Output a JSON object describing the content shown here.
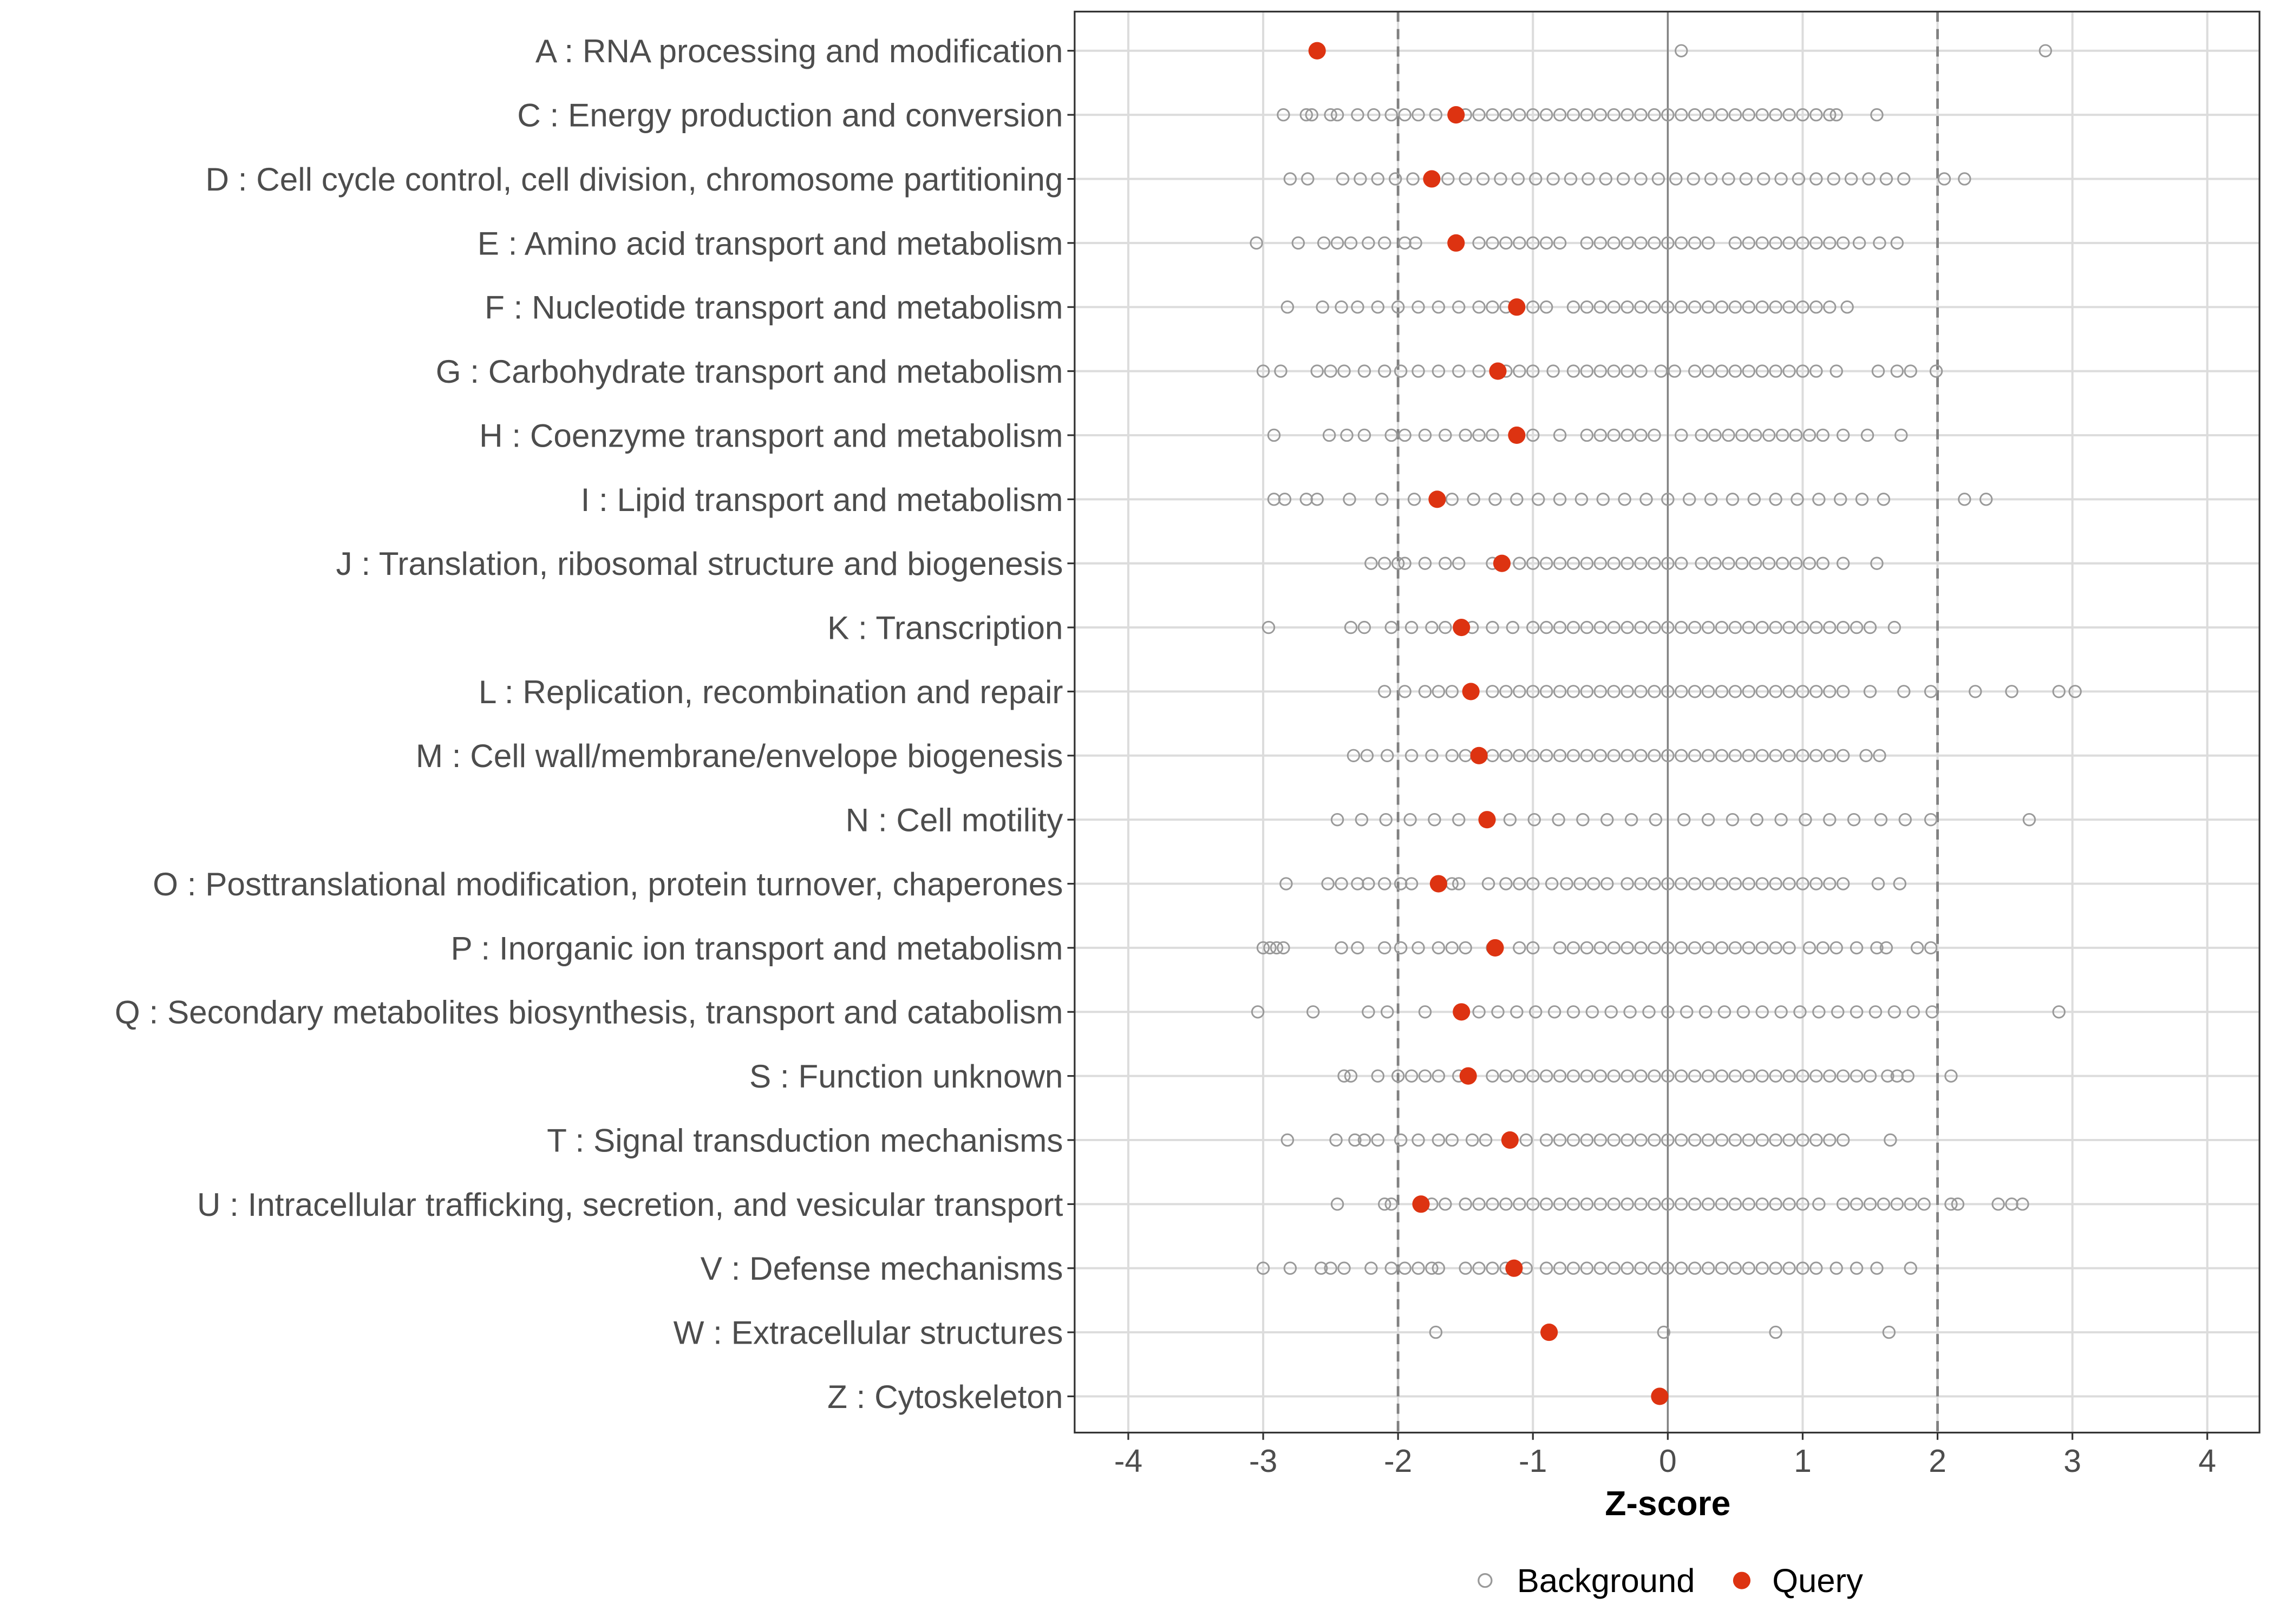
{
  "chart_data": {
    "type": "scatter",
    "title": "",
    "xlabel": "Z-score",
    "ylabel": "",
    "xlim": [
      -4.4,
      4.4
    ],
    "xticks": [
      -4,
      -3,
      -2,
      -1,
      0,
      1,
      2,
      3,
      4
    ],
    "xtick_labels": [
      "-4",
      "-3",
      "-2",
      "-1",
      "0",
      "1",
      "2",
      "3",
      "4"
    ],
    "reference_lines": {
      "solid": [
        0
      ],
      "dashed": [
        -2,
        2
      ]
    },
    "grid": true,
    "legend": {
      "placement": "bottom",
      "entries": [
        "Background",
        "Query"
      ]
    },
    "colors": {
      "background": "#999999",
      "query": "#dd3311"
    },
    "categories": [
      "A : RNA processing and modification",
      "C : Energy production and conversion",
      "D : Cell cycle control, cell division, chromosome partitioning",
      "E : Amino acid transport and metabolism",
      "F : Nucleotide transport and metabolism",
      "G : Carbohydrate transport and metabolism",
      "H : Coenzyme transport and metabolism",
      "I : Lipid transport and metabolism",
      "J : Translation, ribosomal structure and biogenesis",
      "K : Transcription",
      "L : Replication, recombination and repair",
      "M : Cell wall/membrane/envelope biogenesis",
      "N : Cell motility",
      "O : Posttranslational modification, protein turnover, chaperones",
      "P : Inorganic ion transport and metabolism",
      "Q : Secondary metabolites biosynthesis, transport and catabolism",
      "S : Function unknown",
      "T : Signal transduction mechanisms",
      "U : Intracellular trafficking, secretion, and vesicular transport",
      "V : Defense mechanisms",
      "W : Extracellular structures",
      "Z : Cytoskeleton"
    ],
    "series": [
      {
        "name": "Query",
        "values": [
          -2.6,
          -1.57,
          -1.75,
          -1.57,
          -1.12,
          -1.26,
          -1.12,
          -1.71,
          -1.23,
          -1.53,
          -1.46,
          -1.4,
          -1.34,
          -1.7,
          -1.28,
          -1.53,
          -1.48,
          -1.17,
          -1.83,
          -1.14,
          -0.88,
          -0.06
        ]
      },
      {
        "name": "Background",
        "values": [
          [
            0.1,
            2.8
          ],
          [
            -2.85,
            -2.68,
            -2.64,
            -2.5,
            -2.45,
            -2.3,
            -2.18,
            -2.05,
            -1.95,
            -1.85,
            -1.72,
            -1.5,
            -1.4,
            -1.3,
            -1.2,
            -1.1,
            -1.0,
            -0.9,
            -0.8,
            -0.7,
            -0.6,
            -0.5,
            -0.4,
            -0.3,
            -0.2,
            -0.1,
            0.0,
            0.1,
            0.2,
            0.3,
            0.4,
            0.5,
            0.6,
            0.7,
            0.8,
            0.9,
            1.0,
            1.1,
            1.2,
            1.25,
            1.55
          ],
          [
            -2.8,
            -2.67,
            -2.41,
            -2.28,
            -2.15,
            -2.02,
            -1.89,
            -1.63,
            -1.5,
            -1.37,
            -1.24,
            -1.11,
            -0.98,
            -0.85,
            -0.72,
            -0.59,
            -0.46,
            -0.33,
            -0.2,
            -0.07,
            0.06,
            0.19,
            0.32,
            0.45,
            0.58,
            0.71,
            0.84,
            0.97,
            1.1,
            1.23,
            1.36,
            1.49,
            1.62,
            1.75,
            2.05,
            2.2
          ],
          [
            -3.05,
            -2.74,
            -2.55,
            -2.45,
            -2.35,
            -2.22,
            -2.1,
            -1.95,
            -1.87,
            -1.4,
            -1.3,
            -1.2,
            -1.1,
            -1.0,
            -0.9,
            -0.8,
            -0.6,
            -0.5,
            -0.4,
            -0.3,
            -0.2,
            -0.1,
            0.0,
            0.1,
            0.2,
            0.3,
            0.5,
            0.6,
            0.7,
            0.8,
            0.9,
            1.0,
            1.1,
            1.2,
            1.3,
            1.42,
            1.57,
            1.7
          ],
          [
            -2.82,
            -2.56,
            -2.42,
            -2.3,
            -2.15,
            -2.0,
            -1.85,
            -1.7,
            -1.55,
            -1.4,
            -1.3,
            -1.2,
            -1.0,
            -0.9,
            -0.7,
            -0.6,
            -0.5,
            -0.4,
            -0.3,
            -0.2,
            -0.1,
            0.0,
            0.1,
            0.2,
            0.3,
            0.4,
            0.5,
            0.6,
            0.7,
            0.8,
            0.9,
            1.0,
            1.1,
            1.2,
            1.33
          ],
          [
            -3.0,
            -2.87,
            -2.6,
            -2.5,
            -2.4,
            -2.25,
            -2.1,
            -1.98,
            -1.85,
            -1.7,
            -1.55,
            -1.4,
            -1.2,
            -1.1,
            -1.0,
            -0.85,
            -0.7,
            -0.6,
            -0.5,
            -0.4,
            -0.3,
            -0.2,
            -0.05,
            0.05,
            0.2,
            0.3,
            0.4,
            0.5,
            0.6,
            0.7,
            0.8,
            0.9,
            1.0,
            1.1,
            1.25,
            1.56,
            1.7,
            1.8,
            1.99
          ],
          [
            -2.92,
            -2.51,
            -2.38,
            -2.25,
            -2.05,
            -1.95,
            -1.8,
            -1.65,
            -1.5,
            -1.4,
            -1.3,
            -1.0,
            -0.8,
            -0.6,
            -0.5,
            -0.4,
            -0.3,
            -0.2,
            -0.1,
            0.1,
            0.25,
            0.35,
            0.45,
            0.55,
            0.65,
            0.75,
            0.85,
            0.95,
            1.05,
            1.15,
            1.3,
            1.48,
            1.73
          ],
          [
            -2.92,
            -2.84,
            -2.68,
            -2.6,
            -2.36,
            -2.12,
            -1.88,
            -1.6,
            -1.44,
            -1.28,
            -1.12,
            -0.96,
            -0.8,
            -0.64,
            -0.48,
            -0.32,
            -0.16,
            0.0,
            0.16,
            0.32,
            0.48,
            0.64,
            0.8,
            0.96,
            1.12,
            1.28,
            1.44,
            1.6,
            2.2,
            2.36
          ],
          [
            -2.2,
            -2.1,
            -2.0,
            -1.95,
            -1.8,
            -1.65,
            -1.55,
            -1.3,
            -1.1,
            -1.0,
            -0.9,
            -0.8,
            -0.7,
            -0.6,
            -0.5,
            -0.4,
            -0.3,
            -0.2,
            -0.1,
            0.0,
            0.1,
            0.25,
            0.35,
            0.45,
            0.55,
            0.65,
            0.75,
            0.85,
            0.95,
            1.05,
            1.15,
            1.3,
            1.55
          ],
          [
            -2.96,
            -2.35,
            -2.25,
            -2.05,
            -1.9,
            -1.75,
            -1.65,
            -1.45,
            -1.3,
            -1.15,
            -1.0,
            -0.9,
            -0.8,
            -0.7,
            -0.6,
            -0.5,
            -0.4,
            -0.3,
            -0.2,
            -0.1,
            0.0,
            0.1,
            0.2,
            0.3,
            0.4,
            0.5,
            0.6,
            0.7,
            0.8,
            0.9,
            1.0,
            1.1,
            1.2,
            1.3,
            1.4,
            1.5,
            1.68
          ],
          [
            -2.1,
            -1.95,
            -1.8,
            -1.7,
            -1.6,
            -1.3,
            -1.2,
            -1.1,
            -1.0,
            -0.9,
            -0.8,
            -0.7,
            -0.6,
            -0.5,
            -0.4,
            -0.3,
            -0.2,
            -0.1,
            0.0,
            0.1,
            0.2,
            0.3,
            0.4,
            0.5,
            0.6,
            0.7,
            0.8,
            0.9,
            1.0,
            1.1,
            1.2,
            1.3,
            1.5,
            1.75,
            1.95,
            2.28,
            2.55,
            2.9,
            3.02
          ],
          [
            -2.33,
            -2.23,
            -2.08,
            -1.9,
            -1.75,
            -1.6,
            -1.5,
            -1.3,
            -1.2,
            -1.1,
            -1.0,
            -0.9,
            -0.8,
            -0.7,
            -0.6,
            -0.5,
            -0.4,
            -0.3,
            -0.2,
            -0.1,
            0.0,
            0.1,
            0.2,
            0.3,
            0.4,
            0.5,
            0.6,
            0.7,
            0.8,
            0.9,
            1.0,
            1.1,
            1.2,
            1.3,
            1.47,
            1.57
          ],
          [
            -2.45,
            -2.27,
            -2.09,
            -1.91,
            -1.73,
            -1.55,
            -1.17,
            -0.99,
            -0.81,
            -0.63,
            -0.45,
            -0.27,
            -0.09,
            0.12,
            0.3,
            0.48,
            0.66,
            0.84,
            1.02,
            1.2,
            1.38,
            1.58,
            1.76,
            1.95,
            2.68
          ],
          [
            -2.83,
            -2.52,
            -2.42,
            -2.3,
            -2.22,
            -2.1,
            -1.98,
            -1.9,
            -1.6,
            -1.55,
            -1.33,
            -1.2,
            -1.1,
            -1.0,
            -0.86,
            -0.75,
            -0.65,
            -0.55,
            -0.45,
            -0.3,
            -0.2,
            -0.1,
            0.0,
            0.1,
            0.2,
            0.3,
            0.4,
            0.5,
            0.6,
            0.7,
            0.8,
            0.9,
            1.0,
            1.1,
            1.2,
            1.3,
            1.56,
            1.72
          ],
          [
            -3.0,
            -2.95,
            -2.9,
            -2.85,
            -2.42,
            -2.3,
            -2.1,
            -1.98,
            -1.85,
            -1.7,
            -1.6,
            -1.5,
            -1.3,
            -1.1,
            -1.0,
            -0.8,
            -0.7,
            -0.6,
            -0.5,
            -0.4,
            -0.3,
            -0.2,
            -0.1,
            0.0,
            0.1,
            0.2,
            0.3,
            0.4,
            0.5,
            0.6,
            0.7,
            0.8,
            0.9,
            1.05,
            1.15,
            1.25,
            1.4,
            1.55,
            1.62,
            1.85,
            1.95
          ],
          [
            -3.04,
            -2.63,
            -2.22,
            -2.08,
            -1.8,
            -1.4,
            -1.26,
            -1.12,
            -0.98,
            -0.84,
            -0.7,
            -0.56,
            -0.42,
            -0.28,
            -0.14,
            0.0,
            0.14,
            0.28,
            0.42,
            0.56,
            0.7,
            0.84,
            0.98,
            1.12,
            1.26,
            1.4,
            1.54,
            1.68,
            1.82,
            1.96,
            2.9
          ],
          [
            -2.4,
            -2.35,
            -2.15,
            -2.0,
            -1.9,
            -1.8,
            -1.7,
            -1.55,
            -1.3,
            -1.2,
            -1.1,
            -1.0,
            -0.9,
            -0.8,
            -0.7,
            -0.6,
            -0.5,
            -0.4,
            -0.3,
            -0.2,
            -0.1,
            0.0,
            0.1,
            0.2,
            0.3,
            0.4,
            0.5,
            0.6,
            0.7,
            0.8,
            0.9,
            1.0,
            1.1,
            1.2,
            1.3,
            1.4,
            1.5,
            1.63,
            1.7,
            1.78,
            2.1
          ],
          [
            -2.82,
            -2.46,
            -2.32,
            -2.25,
            -2.15,
            -1.98,
            -1.85,
            -1.7,
            -1.6,
            -1.45,
            -1.35,
            -1.05,
            -0.9,
            -0.8,
            -0.7,
            -0.6,
            -0.5,
            -0.4,
            -0.3,
            -0.2,
            -0.1,
            0.0,
            0.1,
            0.2,
            0.3,
            0.4,
            0.5,
            0.6,
            0.7,
            0.8,
            0.9,
            1.0,
            1.1,
            1.2,
            1.3,
            1.65
          ],
          [
            -2.45,
            -2.1,
            -2.05,
            -1.75,
            -1.65,
            -1.5,
            -1.4,
            -1.3,
            -1.2,
            -1.1,
            -1.0,
            -0.9,
            -0.8,
            -0.7,
            -0.6,
            -0.5,
            -0.4,
            -0.3,
            -0.2,
            -0.1,
            0.0,
            0.1,
            0.2,
            0.3,
            0.4,
            0.5,
            0.6,
            0.7,
            0.8,
            0.9,
            1.0,
            1.12,
            1.3,
            1.4,
            1.5,
            1.6,
            1.7,
            1.8,
            1.9,
            2.1,
            2.15,
            2.45,
            2.55,
            2.63
          ],
          [
            -3.0,
            -2.8,
            -2.57,
            -2.5,
            -2.4,
            -2.2,
            -2.05,
            -1.95,
            -1.85,
            -1.75,
            -1.7,
            -1.5,
            -1.4,
            -1.3,
            -1.2,
            -1.05,
            -0.9,
            -0.8,
            -0.7,
            -0.6,
            -0.5,
            -0.4,
            -0.3,
            -0.2,
            -0.1,
            0.0,
            0.1,
            0.2,
            0.3,
            0.4,
            0.5,
            0.6,
            0.7,
            0.8,
            0.9,
            1.0,
            1.1,
            1.25,
            1.4,
            1.55,
            1.8
          ],
          [
            -1.72,
            -0.03,
            0.8,
            1.64
          ],
          []
        ]
      }
    ]
  }
}
